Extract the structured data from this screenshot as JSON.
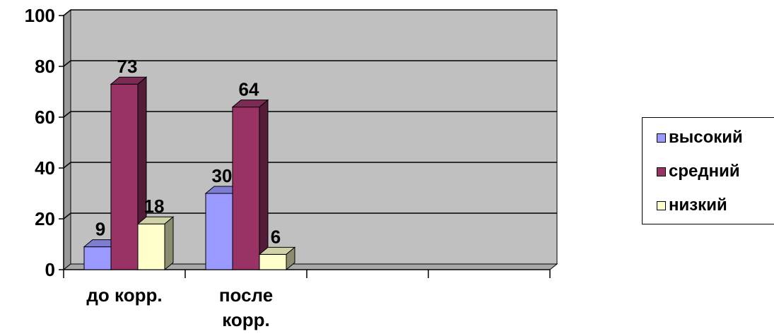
{
  "chart_data": {
    "type": "bar",
    "categories": [
      "до корр.",
      "после корр.",
      "",
      ""
    ],
    "category_lines": [
      [
        "до корр."
      ],
      [
        "после",
        "корр."
      ],
      [],
      []
    ],
    "series": [
      {
        "name": "высокий",
        "values": [
          9,
          30,
          null,
          null
        ],
        "color": "#9999FF"
      },
      {
        "name": "средний",
        "values": [
          73,
          64,
          null,
          null
        ],
        "color": "#993366"
      },
      {
        "name": "низкий",
        "values": [
          18,
          6,
          null,
          null
        ],
        "color": "#FFFFCC"
      }
    ],
    "ylim": [
      0,
      100
    ],
    "yticks": [
      0,
      20,
      40,
      60,
      80,
      100
    ],
    "grid": true,
    "plot_background": "#C0C0C0",
    "legend_position": "right",
    "three_d": true
  }
}
